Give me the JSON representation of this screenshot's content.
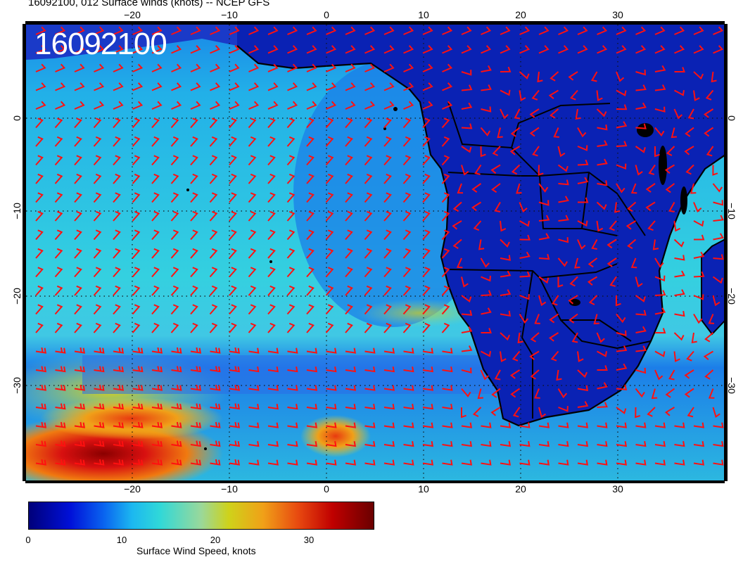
{
  "title": "16092100, 012 Surface winds (knots) -- NCEP GFS",
  "stamp": "16092100",
  "map": {
    "projection": "lat-lon",
    "lon_range": [
      -31,
      41
    ],
    "lat_range": [
      -40,
      9.4
    ],
    "gridlines": "dotted",
    "lon_ticks": [
      "−20",
      "−10",
      "0",
      "10",
      "20",
      "30"
    ],
    "lat_ticks": [
      "0",
      "−10",
      "−20",
      "−30"
    ],
    "colors": {
      "barbs": "#ff1010",
      "coast": "#000000",
      "land_low_wind": "#0a1aa0",
      "ocean_trade": "#2ec8e0",
      "jet": "#c80000"
    }
  },
  "colorbar": {
    "label": "Surface Wind Speed, knots",
    "ticks": [
      "0",
      "10",
      "20",
      "30"
    ],
    "range": [
      0,
      37
    ]
  }
}
